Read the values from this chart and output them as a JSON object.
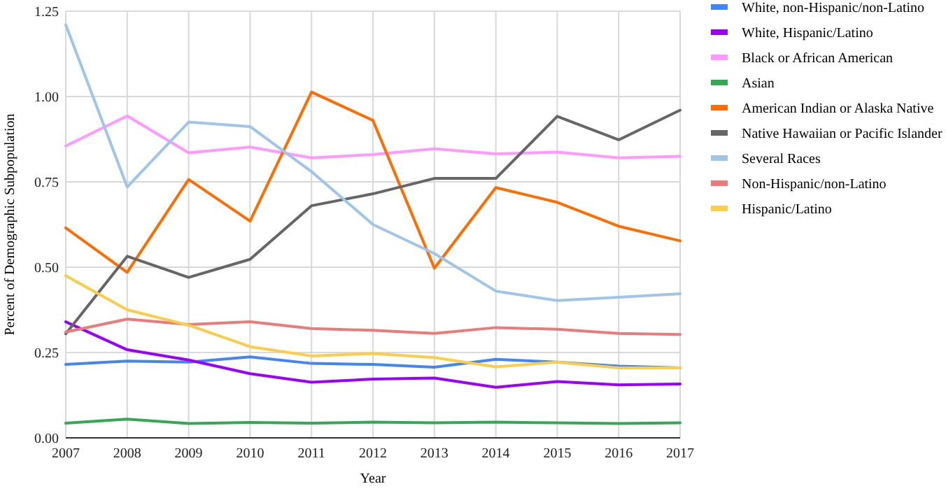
{
  "chart_data": {
    "type": "line",
    "xlabel": "Year",
    "ylabel": "Percent of Demographic Subpopulation",
    "x": [
      2007,
      2008,
      2009,
      2010,
      2011,
      2012,
      2013,
      2014,
      2015,
      2016,
      2017
    ],
    "xlim": [
      2007,
      2017
    ],
    "xticks": [
      2007,
      2008,
      2009,
      2010,
      2011,
      2012,
      2013,
      2014,
      2015,
      2016,
      2017
    ],
    "ylim": [
      0,
      1.25
    ],
    "yticks": [
      {
        "value": 0,
        "label": "0.00"
      },
      {
        "value": 0.25,
        "label": "0.25"
      },
      {
        "value": 0.5,
        "label": "0.50"
      },
      {
        "value": 0.75,
        "label": "0.75"
      },
      {
        "value": 1,
        "label": "1.00"
      },
      {
        "value": 1.25,
        "label": "1.25"
      }
    ],
    "grid": true,
    "legend": "right",
    "marker": "none",
    "line_style": "solid",
    "series": [
      {
        "name": "White, non-Hispanic/non-Latino",
        "color": "#4285f4",
        "values": [
          0.215,
          0.225,
          0.222,
          0.237,
          0.218,
          0.215,
          0.207,
          0.23,
          0.222,
          0.21,
          0.205
        ]
      },
      {
        "name": "White, Hispanic/Latino",
        "color": "#9900ff",
        "values": [
          0.34,
          0.258,
          0.228,
          0.188,
          0.163,
          0.172,
          0.175,
          0.148,
          0.165,
          0.155,
          0.158
        ]
      },
      {
        "name": "Black or African American",
        "color": "#ff99ff",
        "values": [
          0.855,
          0.943,
          0.835,
          0.852,
          0.82,
          0.83,
          0.847,
          0.832,
          0.837,
          0.82,
          0.825
        ]
      },
      {
        "name": "Asian",
        "color": "#34a853",
        "values": [
          0.043,
          0.055,
          0.042,
          0.045,
          0.043,
          0.046,
          0.044,
          0.046,
          0.044,
          0.042,
          0.044
        ]
      },
      {
        "name": "American Indian or Alaska Native",
        "color": "#ff6d01",
        "values": [
          0.615,
          0.485,
          0.757,
          0.635,
          1.013,
          0.93,
          0.497,
          0.733,
          0.69,
          0.62,
          0.577
        ]
      },
      {
        "name": "Native Hawaiian or Pacific Islander",
        "color": "#666666",
        "values": [
          0.305,
          0.532,
          0.47,
          0.523,
          0.68,
          0.715,
          0.76,
          0.76,
          0.942,
          0.873,
          0.96
        ]
      },
      {
        "name": "Several Races",
        "color": "#9fc5e8",
        "values": [
          1.21,
          0.735,
          0.925,
          0.912,
          0.78,
          0.625,
          0.54,
          0.43,
          0.402,
          0.412,
          0.422
        ]
      },
      {
        "name": "Non-Hispanic/non-Latino",
        "color": "#ea7b7b",
        "values": [
          0.31,
          0.348,
          0.332,
          0.34,
          0.32,
          0.315,
          0.306,
          0.323,
          0.318,
          0.306,
          0.303
        ]
      },
      {
        "name": "Hispanic/Latino",
        "color": "#fbcd48",
        "values": [
          0.475,
          0.375,
          0.33,
          0.267,
          0.24,
          0.247,
          0.235,
          0.208,
          0.222,
          0.205,
          0.205
        ]
      }
    ]
  }
}
